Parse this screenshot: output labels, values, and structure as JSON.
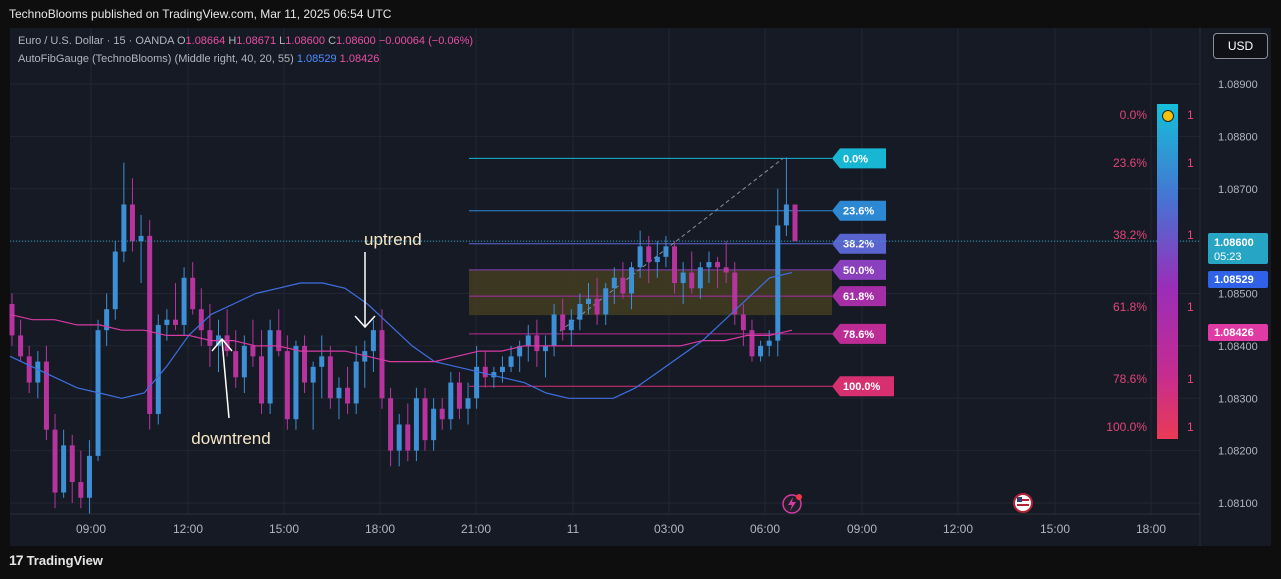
{
  "header": {
    "publisher": "TechnoBlooms published on TradingView.com, Mar 11, 2025 06:54 UTC"
  },
  "legend": {
    "symbol": "Euro / U.S. Dollar · 15 · OANDA",
    "o_label": "O",
    "o": "1.08664",
    "h_label": "H",
    "h": "1.08671",
    "l_label": "L",
    "l": "1.08600",
    "c_label": "C",
    "c": "1.08600",
    "change": "−0.00064 (−0.06%)",
    "indicator": "AutoFibGauge (TechnoBlooms) (Middle right, 40, 20, 55)",
    "ind_val1": "1.08529",
    "ind_val2": "1.08426"
  },
  "currency_button": "USD",
  "footer": {
    "brand": "TradingView",
    "logo_mark": "17"
  },
  "colors": {
    "bull": "#3d8fd6",
    "bear": "#b7349e",
    "fast_ma": "#3f6fe0",
    "slow_ma": "#d63aa3",
    "background": "#161a25"
  },
  "chart_data": {
    "type": "candlestick",
    "y_axis": {
      "ticks": [
        "1.08900",
        "1.08800",
        "1.08700",
        "1.08600",
        "1.08500",
        "1.08400",
        "1.08300",
        "1.08200",
        "1.08100"
      ],
      "range": [
        1.0807,
        1.0895
      ]
    },
    "x_axis": {
      "ticks": [
        "09:00",
        "12:00",
        "15:00",
        "18:00",
        "21:00",
        "11",
        "03:00",
        "06:00",
        "09:00",
        "12:00",
        "15:00",
        "18:00"
      ]
    },
    "price_labels": [
      {
        "price": "1.08600",
        "countdown": "05:23",
        "color": "#26a5c4"
      },
      {
        "price": "1.08529",
        "color": "#2f62e6"
      },
      {
        "price": "1.08426",
        "color": "#e03aa5"
      }
    ],
    "annotations": [
      {
        "text": "uptrend",
        "color": "#f5e7c5"
      },
      {
        "text": "downtrend",
        "color": "#f5e7c5"
      }
    ],
    "fib_levels": [
      {
        "label": "0.0%",
        "price": 1.08758,
        "color": "#17b6d3"
      },
      {
        "label": "23.6%",
        "price": 1.08658,
        "color": "#2d88d3"
      },
      {
        "label": "38.2%",
        "price": 1.08595,
        "color": "#5a64cf"
      },
      {
        "label": "50.0%",
        "price": 1.08545,
        "color": "#8a3fbd"
      },
      {
        "label": "61.8%",
        "price": 1.08495,
        "color": "#a52ea7"
      },
      {
        "label": "78.6%",
        "price": 1.08423,
        "color": "#bd2c95"
      },
      {
        "label": "100.0%",
        "price": 1.08323,
        "color": "#d63070"
      }
    ],
    "gauge_labels": [
      {
        "label": "0.0%",
        "count": "1"
      },
      {
        "label": "23.6%",
        "count": "1"
      },
      {
        "label": "38.2%",
        "count": "1"
      },
      {
        "label": "61.8%",
        "count": "1"
      },
      {
        "label": "78.6%",
        "count": "1"
      },
      {
        "label": "100.0%",
        "count": "1"
      }
    ],
    "candles": [
      {
        "o": 1.0848,
        "h": 1.085,
        "l": 1.084,
        "c": 1.0842
      },
      {
        "o": 1.0842,
        "h": 1.0845,
        "l": 1.0837,
        "c": 1.0838
      },
      {
        "o": 1.0838,
        "h": 1.084,
        "l": 1.0831,
        "c": 1.0833
      },
      {
        "o": 1.0833,
        "h": 1.0839,
        "l": 1.083,
        "c": 1.0837
      },
      {
        "o": 1.0837,
        "h": 1.084,
        "l": 1.0822,
        "c": 1.0824
      },
      {
        "o": 1.0824,
        "h": 1.0827,
        "l": 1.0809,
        "c": 1.0812
      },
      {
        "o": 1.0812,
        "h": 1.0824,
        "l": 1.0811,
        "c": 1.0821
      },
      {
        "o": 1.0821,
        "h": 1.0823,
        "l": 1.081,
        "c": 1.0814
      },
      {
        "o": 1.0814,
        "h": 1.082,
        "l": 1.0809,
        "c": 1.0811
      },
      {
        "o": 1.0811,
        "h": 1.0822,
        "l": 1.0808,
        "c": 1.0819
      },
      {
        "o": 1.0819,
        "h": 1.0845,
        "l": 1.0818,
        "c": 1.0843
      },
      {
        "o": 1.0843,
        "h": 1.085,
        "l": 1.084,
        "c": 1.0847
      },
      {
        "o": 1.0847,
        "h": 1.086,
        "l": 1.0845,
        "c": 1.0858
      },
      {
        "o": 1.0858,
        "h": 1.0875,
        "l": 1.0856,
        "c": 1.0867
      },
      {
        "o": 1.0867,
        "h": 1.0872,
        "l": 1.0858,
        "c": 1.086
      },
      {
        "o": 1.086,
        "h": 1.0865,
        "l": 1.0852,
        "c": 1.0861
      },
      {
        "o": 1.0861,
        "h": 1.0864,
        "l": 1.0824,
        "c": 1.0827
      },
      {
        "o": 1.0827,
        "h": 1.0846,
        "l": 1.0825,
        "c": 1.0844
      },
      {
        "o": 1.0844,
        "h": 1.0847,
        "l": 1.0841,
        "c": 1.0845
      },
      {
        "o": 1.0845,
        "h": 1.0852,
        "l": 1.0843,
        "c": 1.0844
      },
      {
        "o": 1.0844,
        "h": 1.0855,
        "l": 1.0842,
        "c": 1.0853
      },
      {
        "o": 1.0853,
        "h": 1.0856,
        "l": 1.0846,
        "c": 1.0847
      },
      {
        "o": 1.0847,
        "h": 1.0851,
        "l": 1.084,
        "c": 1.0843
      },
      {
        "o": 1.0843,
        "h": 1.0848,
        "l": 1.0836,
        "c": 1.084
      },
      {
        "o": 1.084,
        "h": 1.0845,
        "l": 1.0835,
        "c": 1.0842
      },
      {
        "o": 1.0842,
        "h": 1.0847,
        "l": 1.0838,
        "c": 1.0839
      },
      {
        "o": 1.0839,
        "h": 1.0843,
        "l": 1.0832,
        "c": 1.0834
      },
      {
        "o": 1.0834,
        "h": 1.0842,
        "l": 1.0831,
        "c": 1.084
      },
      {
        "o": 1.084,
        "h": 1.0845,
        "l": 1.0836,
        "c": 1.0838
      },
      {
        "o": 1.0838,
        "h": 1.0843,
        "l": 1.0827,
        "c": 1.0829
      },
      {
        "o": 1.0829,
        "h": 1.0845,
        "l": 1.0827,
        "c": 1.0843
      },
      {
        "o": 1.0843,
        "h": 1.0847,
        "l": 1.0838,
        "c": 1.0839
      },
      {
        "o": 1.0839,
        "h": 1.0842,
        "l": 1.0824,
        "c": 1.0826
      },
      {
        "o": 1.0826,
        "h": 1.0841,
        "l": 1.0824,
        "c": 1.084
      },
      {
        "o": 1.084,
        "h": 1.0842,
        "l": 1.0831,
        "c": 1.0833
      },
      {
        "o": 1.0833,
        "h": 1.0837,
        "l": 1.0824,
        "c": 1.0836
      },
      {
        "o": 1.0836,
        "h": 1.0842,
        "l": 1.083,
        "c": 1.0838
      },
      {
        "o": 1.0838,
        "h": 1.084,
        "l": 1.0828,
        "c": 1.083
      },
      {
        "o": 1.083,
        "h": 1.0834,
        "l": 1.0826,
        "c": 1.0832
      },
      {
        "o": 1.0832,
        "h": 1.0836,
        "l": 1.0827,
        "c": 1.0829
      },
      {
        "o": 1.0829,
        "h": 1.084,
        "l": 1.0827,
        "c": 1.0837
      },
      {
        "o": 1.0837,
        "h": 1.0841,
        "l": 1.0832,
        "c": 1.0839
      },
      {
        "o": 1.0839,
        "h": 1.0845,
        "l": 1.0835,
        "c": 1.0843
      },
      {
        "o": 1.0843,
        "h": 1.0847,
        "l": 1.0828,
        "c": 1.083
      },
      {
        "o": 1.083,
        "h": 1.0832,
        "l": 1.0817,
        "c": 1.082
      },
      {
        "o": 1.082,
        "h": 1.0827,
        "l": 1.0817,
        "c": 1.0825
      },
      {
        "o": 1.0825,
        "h": 1.0829,
        "l": 1.0818,
        "c": 1.082
      },
      {
        "o": 1.082,
        "h": 1.0832,
        "l": 1.0818,
        "c": 1.083
      },
      {
        "o": 1.083,
        "h": 1.0832,
        "l": 1.082,
        "c": 1.0822
      },
      {
        "o": 1.0822,
        "h": 1.083,
        "l": 1.082,
        "c": 1.0828
      },
      {
        "o": 1.0828,
        "h": 1.083,
        "l": 1.0824,
        "c": 1.0826
      },
      {
        "o": 1.0826,
        "h": 1.0835,
        "l": 1.0824,
        "c": 1.0833
      },
      {
        "o": 1.0833,
        "h": 1.0835,
        "l": 1.0826,
        "c": 1.0828
      },
      {
        "o": 1.0828,
        "h": 1.0833,
        "l": 1.0825,
        "c": 1.083
      },
      {
        "o": 1.083,
        "h": 1.084,
        "l": 1.0828,
        "c": 1.0836
      },
      {
        "o": 1.0836,
        "h": 1.0839,
        "l": 1.0832,
        "c": 1.0834
      },
      {
        "o": 1.0834,
        "h": 1.0836,
        "l": 1.0832,
        "c": 1.0835
      },
      {
        "o": 1.0835,
        "h": 1.0838,
        "l": 1.0833,
        "c": 1.0836
      },
      {
        "o": 1.0836,
        "h": 1.084,
        "l": 1.0835,
        "c": 1.0838
      },
      {
        "o": 1.0838,
        "h": 1.0841,
        "l": 1.0835,
        "c": 1.084
      },
      {
        "o": 1.084,
        "h": 1.0844,
        "l": 1.0837,
        "c": 1.0842
      },
      {
        "o": 1.0842,
        "h": 1.0845,
        "l": 1.0836,
        "c": 1.0839
      },
      {
        "o": 1.0839,
        "h": 1.0842,
        "l": 1.0834,
        "c": 1.084
      },
      {
        "o": 1.084,
        "h": 1.0848,
        "l": 1.0838,
        "c": 1.0846
      },
      {
        "o": 1.0846,
        "h": 1.0849,
        "l": 1.0841,
        "c": 1.0843
      },
      {
        "o": 1.0843,
        "h": 1.0847,
        "l": 1.084,
        "c": 1.0845
      },
      {
        "o": 1.0845,
        "h": 1.085,
        "l": 1.0843,
        "c": 1.0848
      },
      {
        "o": 1.0848,
        "h": 1.0852,
        "l": 1.0846,
        "c": 1.0849
      },
      {
        "o": 1.0849,
        "h": 1.0853,
        "l": 1.0844,
        "c": 1.0846
      },
      {
        "o": 1.0846,
        "h": 1.0852,
        "l": 1.0844,
        "c": 1.0851
      },
      {
        "o": 1.0851,
        "h": 1.0855,
        "l": 1.0848,
        "c": 1.0853
      },
      {
        "o": 1.0853,
        "h": 1.0856,
        "l": 1.0849,
        "c": 1.085
      },
      {
        "o": 1.085,
        "h": 1.0856,
        "l": 1.0847,
        "c": 1.0855
      },
      {
        "o": 1.0855,
        "h": 1.0862,
        "l": 1.0853,
        "c": 1.0859
      },
      {
        "o": 1.0859,
        "h": 1.0861,
        "l": 1.0852,
        "c": 1.0856
      },
      {
        "o": 1.0856,
        "h": 1.086,
        "l": 1.0853,
        "c": 1.0857
      },
      {
        "o": 1.0857,
        "h": 1.0861,
        "l": 1.0855,
        "c": 1.0859
      },
      {
        "o": 1.0859,
        "h": 1.086,
        "l": 1.085,
        "c": 1.0852
      },
      {
        "o": 1.0852,
        "h": 1.0856,
        "l": 1.0848,
        "c": 1.0854
      },
      {
        "o": 1.0854,
        "h": 1.0858,
        "l": 1.085,
        "c": 1.0851
      },
      {
        "o": 1.0851,
        "h": 1.0856,
        "l": 1.0849,
        "c": 1.0855
      },
      {
        "o": 1.0855,
        "h": 1.0858,
        "l": 1.0852,
        "c": 1.0856
      },
      {
        "o": 1.0856,
        "h": 1.0857,
        "l": 1.0851,
        "c": 1.0855
      },
      {
        "o": 1.0855,
        "h": 1.086,
        "l": 1.0852,
        "c": 1.0854
      },
      {
        "o": 1.0854,
        "h": 1.0856,
        "l": 1.0844,
        "c": 1.0846
      },
      {
        "o": 1.0846,
        "h": 1.0848,
        "l": 1.084,
        "c": 1.0843
      },
      {
        "o": 1.0843,
        "h": 1.0845,
        "l": 1.0837,
        "c": 1.0838
      },
      {
        "o": 1.0838,
        "h": 1.0841,
        "l": 1.0837,
        "c": 1.084
      },
      {
        "o": 1.084,
        "h": 1.0843,
        "l": 1.0838,
        "c": 1.0841
      },
      {
        "o": 1.0841,
        "h": 1.087,
        "l": 1.0838,
        "c": 1.0863
      },
      {
        "o": 1.0863,
        "h": 1.0876,
        "l": 1.0861,
        "c": 1.0867
      },
      {
        "o": 1.0867,
        "h": 1.0867,
        "l": 1.086,
        "c": 1.086
      }
    ],
    "fast_ma": [
      1.0838,
      1.0836,
      1.0834,
      1.0832,
      1.0831,
      1.083,
      1.0831,
      1.0836,
      1.0842,
      1.0846,
      1.0848,
      1.085,
      1.0851,
      1.0852,
      1.0852,
      1.0851,
      1.0848,
      1.0844,
      1.084,
      1.0837,
      1.0836,
      1.0835,
      1.0834,
      1.0833,
      1.0831,
      1.083,
      1.083,
      1.083,
      1.0832,
      1.0835,
      1.0838,
      1.0841,
      1.0845,
      1.0849,
      1.0853,
      1.0854
    ],
    "slow_ma": [
      1.0846,
      1.0845,
      1.0845,
      1.0844,
      1.0844,
      1.0843,
      1.0843,
      1.0842,
      1.0842,
      1.0841,
      1.0841,
      1.084,
      1.084,
      1.0839,
      1.0839,
      1.0839,
      1.0838,
      1.0837,
      1.0837,
      1.0837,
      1.0838,
      1.0839,
      1.0839,
      1.084,
      1.084,
      1.084,
      1.084,
      1.084,
      1.084,
      1.084,
      1.084,
      1.0841,
      1.0841,
      1.0842,
      1.0842,
      1.0843
    ]
  }
}
